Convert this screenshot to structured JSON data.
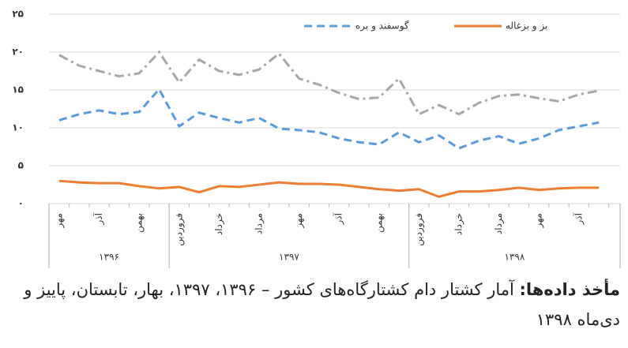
{
  "chart_data": {
    "type": "line",
    "categories": [
      "مهر",
      null,
      "آذر",
      null,
      "بهمن",
      null,
      "فروردین",
      null,
      "خرداد",
      null,
      "مرداد",
      null,
      "مهر",
      null,
      "آذر",
      null,
      "بهمن",
      null,
      "فروردین",
      null,
      "خرداد",
      null,
      "مرداد",
      null,
      "مهر",
      null,
      "آذر",
      null
    ],
    "year_groups": [
      {
        "label": "۱۳۹۶",
        "count": 6
      },
      {
        "label": "۱۳۹۷",
        "count": 12
      },
      {
        "label": "۱۳۹۸",
        "count": 10
      }
    ],
    "series": [
      {
        "color": "#a6a6a6",
        "style": "dashdot",
        "values": [
          19.6,
          18.2,
          17.5,
          16.8,
          17.2,
          20,
          16,
          19,
          17.5,
          17,
          17.7,
          19.8,
          16.5,
          15.7,
          14.6,
          13.8,
          14,
          16.5,
          11.8,
          13,
          11.8,
          13.3,
          14.2,
          14.4,
          13.9,
          13.5,
          14.4,
          14.9
        ]
      },
      {
        "name": "گوسفند و بره",
        "color": "#5b9bd5",
        "style": "dashed",
        "values": [
          11,
          11.8,
          12.3,
          11.8,
          12.1,
          15.1,
          10.2,
          12,
          11.3,
          10.7,
          11.3,
          9.9,
          9.7,
          9.4,
          8.6,
          8.1,
          7.8,
          9.4,
          8.1,
          9,
          7.3,
          8.3,
          8.9,
          7.9,
          8.6,
          9.7,
          10.2,
          10.7
        ]
      },
      {
        "name": "بز و بزغاله",
        "color": "#ed7d31",
        "style": "solid",
        "values": [
          3,
          2.8,
          2.7,
          2.7,
          2.3,
          2,
          2.2,
          1.5,
          2.3,
          2.2,
          2.5,
          2.8,
          2.6,
          2.6,
          2.5,
          2.2,
          1.9,
          1.7,
          1.9,
          0.9,
          1.6,
          1.6,
          1.8,
          2.1,
          1.8,
          2,
          2.1,
          2.1
        ]
      }
    ],
    "ylim": [
      0,
      25
    ],
    "yticks": [
      {
        "value": 0,
        "label": "۰"
      },
      {
        "value": 5,
        "label": "۵"
      },
      {
        "value": 10,
        "label": "۱۰"
      },
      {
        "value": 15,
        "label": "۱۵"
      },
      {
        "value": 20,
        "label": "۲۰"
      },
      {
        "value": 25,
        "label": "۲۵"
      }
    ],
    "grid": true
  },
  "source_label": "مأخذ داده‌ها:",
  "source_text": "آمار کشتار دام کشتارگاه‌های کشور – ۱۳۹۶، ۱۳۹۷، بهار، تابستان، پاییز و دی‌ماه ۱۳۹۸"
}
